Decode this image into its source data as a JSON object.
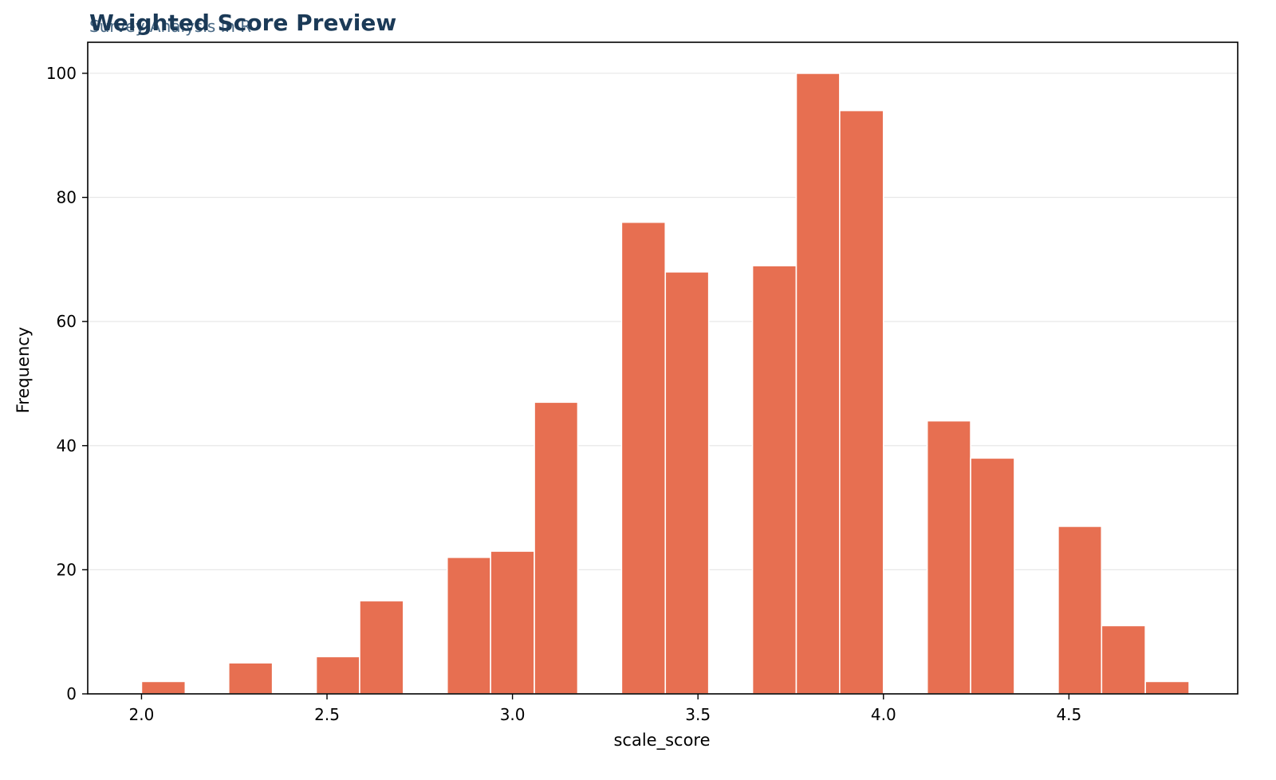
{
  "chart_data": {
    "type": "bar",
    "title": "Weighted Score Preview",
    "subtitle": "Survey Analysis in R",
    "xlabel": "scale_score",
    "ylabel": "Frequency",
    "xlim": [
      1.855,
      4.955
    ],
    "ylim": [
      0,
      105
    ],
    "x_ticks": [
      "2.0",
      "2.5",
      "3.0",
      "3.5",
      "4.0",
      "4.5"
    ],
    "y_ticks": [
      "0",
      "20",
      "40",
      "60",
      "80",
      "100"
    ],
    "grid": "horizontal",
    "bin_width": 0.1176,
    "bins": [
      {
        "x0": 2.0,
        "x1": 2.118,
        "count": 2
      },
      {
        "x0": 2.235,
        "x1": 2.353,
        "count": 5
      },
      {
        "x0": 2.471,
        "x1": 2.588,
        "count": 6
      },
      {
        "x0": 2.588,
        "x1": 2.706,
        "count": 15
      },
      {
        "x0": 2.824,
        "x1": 2.941,
        "count": 22
      },
      {
        "x0": 2.941,
        "x1": 3.059,
        "count": 23
      },
      {
        "x0": 3.059,
        "x1": 3.176,
        "count": 47
      },
      {
        "x0": 3.294,
        "x1": 3.412,
        "count": 76
      },
      {
        "x0": 3.412,
        "x1": 3.529,
        "count": 68
      },
      {
        "x0": 3.647,
        "x1": 3.765,
        "count": 69
      },
      {
        "x0": 3.765,
        "x1": 3.882,
        "count": 100
      },
      {
        "x0": 3.882,
        "x1": 4.0,
        "count": 94
      },
      {
        "x0": 4.118,
        "x1": 4.235,
        "count": 44
      },
      {
        "x0": 4.235,
        "x1": 4.353,
        "count": 38
      },
      {
        "x0": 4.471,
        "x1": 4.588,
        "count": 27
      },
      {
        "x0": 4.588,
        "x1": 4.706,
        "count": 11
      },
      {
        "x0": 4.706,
        "x1": 4.824,
        "count": 2
      }
    ],
    "colors": {
      "bar": "#e76f51",
      "bar_edge": "#ffffff",
      "title": "#1b3a57",
      "subtitle": "#4a6a86",
      "grid": "#e8e8e8"
    }
  }
}
